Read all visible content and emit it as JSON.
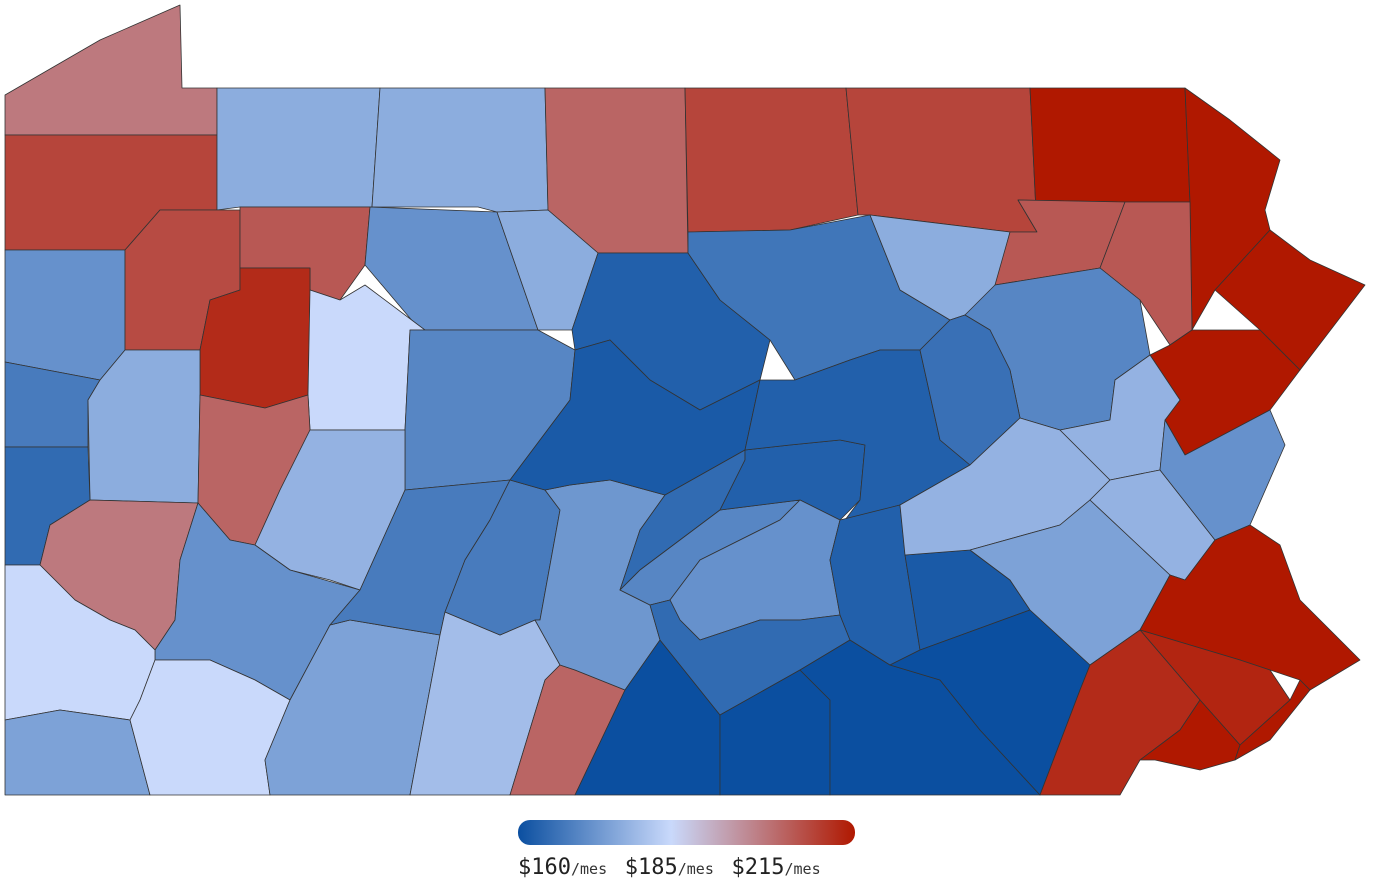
{
  "chart_data": {
    "type": "choropleth",
    "values": [
      200,
      208,
      177,
      177,
      203,
      208,
      208,
      215,
      215,
      215,
      172,
      207,
      205,
      172,
      177,
      212,
      185,
      170,
      163,
      167,
      177,
      205,
      205,
      170,
      215,
      168,
      177,
      203,
      178,
      165,
      200,
      172,
      185,
      175,
      185,
      175,
      168,
      180,
      203,
      168,
      173,
      162,
      165,
      170,
      163,
      163,
      166,
      172,
      160,
      165,
      160,
      160,
      163,
      162,
      178,
      160,
      175,
      178,
      178,
      172,
      215,
      213,
      212,
      215,
      215
    ],
    "scale": {
      "stops": [
        {
          "value": 160,
          "label": "$160",
          "color": "#0b4fa0"
        },
        {
          "value": 185,
          "label": "$185",
          "color": "#c9d9fb"
        },
        {
          "value": 215,
          "label": "$215",
          "color": "#b01800"
        }
      ],
      "unit": "/mes"
    }
  }
}
